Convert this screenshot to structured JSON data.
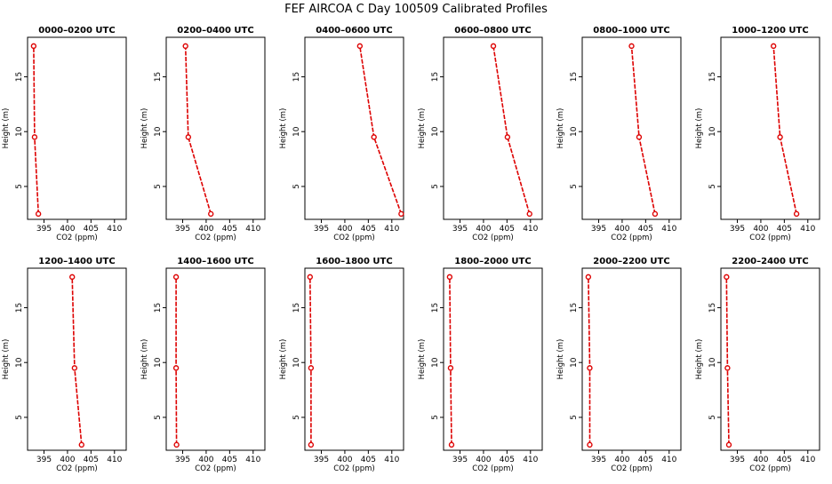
{
  "title": "FEF AIRCOA C  Day 100509  Calibrated Profiles",
  "colors": {
    "profile": "#dd0000",
    "axis": "#000000"
  },
  "chart_data": {
    "type": "line",
    "xlabel": "CO2 (ppm)",
    "ylabel": "Height (m)",
    "xlim": [
      391.5,
      412.5
    ],
    "ylim": [
      2,
      18.6
    ],
    "xticks": [
      395,
      400,
      405,
      410
    ],
    "yticks": [
      5,
      10,
      15
    ],
    "heights": [
      2.5,
      9.5,
      17.8
    ],
    "panels": [
      {
        "title": "0000–0200 UTC",
        "co2": [
          393.8,
          393.0,
          392.8
        ]
      },
      {
        "title": "0200–0400 UTC",
        "co2": [
          401.0,
          396.2,
          395.6
        ]
      },
      {
        "title": "0400–0600 UTC",
        "co2": [
          412.0,
          406.2,
          403.2
        ]
      },
      {
        "title": "0600–0800 UTC",
        "co2": [
          409.8,
          405.1,
          402.1
        ]
      },
      {
        "title": "0800–1000 UTC",
        "co2": [
          407.0,
          403.6,
          402.0
        ]
      },
      {
        "title": "1000–1200 UTC",
        "co2": [
          407.6,
          404.1,
          402.7
        ]
      },
      {
        "title": "1200–1400 UTC",
        "co2": [
          403.0,
          401.5,
          401.0
        ]
      },
      {
        "title": "1400–1600 UTC",
        "co2": [
          393.7,
          393.6,
          393.6
        ]
      },
      {
        "title": "1600–1800 UTC",
        "co2": [
          392.8,
          392.8,
          392.6
        ]
      },
      {
        "title": "1800–2000 UTC",
        "co2": [
          393.2,
          393.0,
          392.8
        ]
      },
      {
        "title": "2000–2200 UTC",
        "co2": [
          393.1,
          393.1,
          392.8
        ]
      },
      {
        "title": "2200–2400 UTC",
        "co2": [
          393.2,
          392.9,
          392.7
        ]
      }
    ]
  }
}
